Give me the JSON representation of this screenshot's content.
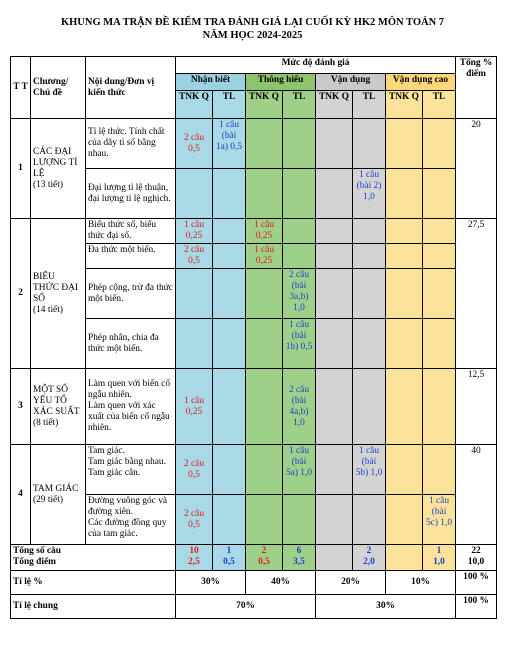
{
  "title": {
    "line1": "KHUNG MA TRẬN ĐỀ KIỂM TRA ĐÁNH GIÁ LẠI CUỐI KỲ HK2 MÔN TOÁN 7",
    "line2": "NĂM HỌC 2024-2025"
  },
  "header": {
    "tt": "T T",
    "chapter": "Chương/ Chủ đề",
    "content": "Nội dung/Đơn vị kiến thức",
    "level": "Mức độ đánh giá",
    "total": "Tổng % điểm",
    "nhan_biet": "Nhận biết",
    "thong_hieu": "Thông hiểu",
    "van_dung": "Vận dụng",
    "van_dung_cao": "Vận dụng cao",
    "tnkq": "TNK Q",
    "tl": "TL"
  },
  "rows": {
    "ch1": {
      "tt": "1",
      "name": "CÁC ĐẠI LƯỢNG TỈ LỆ",
      "hours": "(13 tiết)",
      "total": "20"
    },
    "r1a": {
      "content": "Tỉ lệ thức. Tính chất của dãy tỉ số bằng nhau.",
      "nb_tnkq": "2 câu 0,5",
      "nb_tl": "1 câu (bài 1a) 0,5"
    },
    "r1b": {
      "content": "Đại lượng tỉ lệ thuận, đại lượng tỉ lệ nghịch.",
      "vd_tl": "1 câu (bài 2) 1,0"
    },
    "ch2": {
      "tt": "2",
      "name": "BIỂU THỨC ĐẠI SỐ",
      "hours": "(14 tiết)",
      "total": "27,5"
    },
    "r2a": {
      "content": "Biểu thức số, biểu thức đại số.",
      "nb_tnkq": "1 câu 0,25",
      "th_tnkq": "1 câu 0,25"
    },
    "r2b": {
      "content": "Đa thức một biến.",
      "nb_tnkq": "2 câu 0,5",
      "th_tnkq": "1 câu 0,25"
    },
    "r2c": {
      "content": "Phép cộng, trừ đa thức một biến.",
      "th_tl": "2 câu (bài 3a,b) 1,0"
    },
    "r2d": {
      "content": "Phép nhân, chia đa thức một biến.",
      "th_tl": "1 câu (bài 1b) 0,5"
    },
    "ch3": {
      "tt": "3",
      "name": "MỘT SỐ YẾU TỐ XÁC SUẤT",
      "hours": "(8 tiết)",
      "total": "12,5"
    },
    "r3a": {
      "content1": "Làm quen với biến cố ngẫu nhiên.",
      "content2": "Làm quen với xác xuất của biến cố ngẫu nhiên.",
      "nb_tnkq": "1 câu 0,25",
      "th_tl": "2 câu (bài 4a,b) 1,0"
    },
    "ch4": {
      "tt": "4",
      "name": "TAM GIÁC",
      "hours": "(29 tiết)",
      "total": "40"
    },
    "r4a": {
      "content1": "Tam giác.",
      "content2": "Tam giác bằng nhau.",
      "content3": "Tam giác cân.",
      "nb_tnkq": "2 câu 0,5",
      "th_tl": "1 câu (bài 5a) 1,0",
      "vd_tl": "1 câu (bài 5b) 1,0"
    },
    "r4b": {
      "content1": "Đường vuông góc và đường xiên.",
      "content2": "Các đường đồng quy của tam giác.",
      "nb_tnkq": "2 câu 0,5",
      "vdc_tl": "1 câu (bài 5c) 1,0"
    }
  },
  "totals": {
    "label_cau": "Tổng số câu",
    "label_diem": "Tổng điểm",
    "nb_tnkq": [
      "10",
      "2,5"
    ],
    "nb_tl": [
      "1",
      "0,5"
    ],
    "th_tnkq": [
      "2",
      "0,5"
    ],
    "th_tl": [
      "6",
      "3,5"
    ],
    "vd_tl": [
      "2",
      "2,0"
    ],
    "vdc_tl": [
      "1",
      "1,0"
    ],
    "all": [
      "22",
      "10,0"
    ]
  },
  "ratio": {
    "label": "Tỉ lệ %",
    "nb": "30%",
    "th": "40%",
    "vd": "20%",
    "vdc": "10%",
    "total": "100 %"
  },
  "ratio_general": {
    "label": "Tỉ lệ chung",
    "basic": "70%",
    "advanced": "30%",
    "total": "100 %"
  },
  "colors": {
    "nhan_biet": "#a9d8e6",
    "thong_hieu": "#9fd08a",
    "van_dung": "#d3d3d3",
    "van_dung_cao": "#fde39a",
    "red_text": "#e01b1b",
    "blue_text": "#1c3fd0"
  }
}
